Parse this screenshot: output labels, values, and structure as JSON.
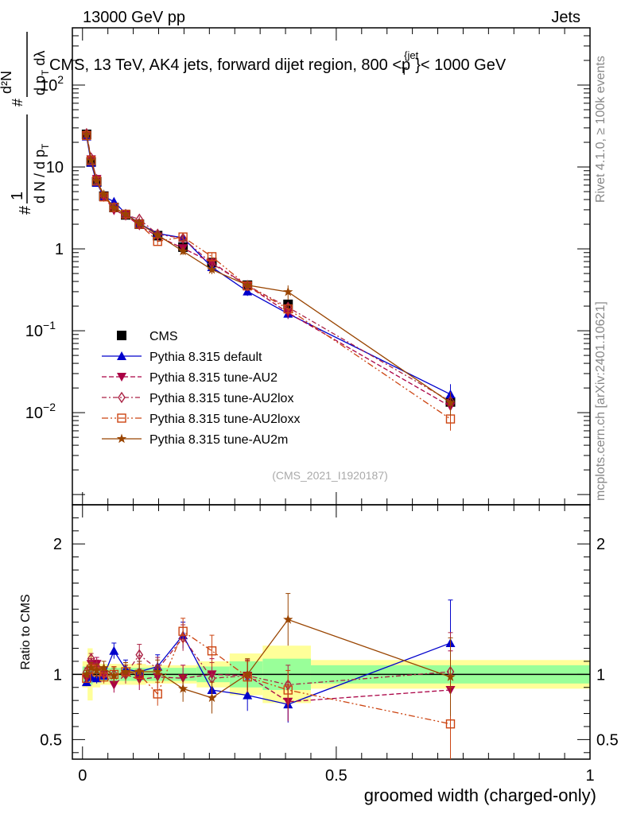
{
  "header": {
    "left": "13000 GeV pp",
    "right": "Jets"
  },
  "side_text": {
    "rivet": "Rivet 4.1.0, ≥ 100k events",
    "mcplots": "mcplots.cern.ch [arXiv:2401.10621]"
  },
  "chart_data": {
    "type": "line",
    "title": "CMS, 13 TeV, AK4 jets, forward dijet region, 800 <p_T^{jet}< 1000 GeV",
    "title_parts": {
      "pre": "CMS, 13 TeV, AK4 jets, forward dijet region, 800 <",
      "p": "p",
      "sub": "T",
      "sup": "{jet",
      "post": "}< 1000 GeV"
    },
    "ylabel_main": "1/(dN/dp_T) d²N/(dp_T dλ)",
    "ylabel_parts": {
      "frac_num": "1",
      "frac_den_pre": "d N / d p",
      "frac_den_sub": "T",
      "num2": "d²N",
      "den2_pre": "d p",
      "den2_sub": "T",
      "den2_post": " dλ",
      "hash": "#"
    },
    "ylabel_ratio": "Ratio to CMS",
    "xlabel": "groomed width (charged-only)",
    "analysis_id": "(CMS_2021_I1920187)",
    "xlim": [
      -0.02,
      1.0
    ],
    "ylim_main": [
      0.00075,
      500
    ],
    "ylim_ratio": [
      0.35,
      2.3
    ],
    "main_y_ticks": [
      {
        "value": 0.01,
        "label": "10",
        "exp": "−2"
      },
      {
        "value": 0.1,
        "label": "10",
        "exp": "−1"
      },
      {
        "value": 1,
        "label": "1",
        "exp": ""
      },
      {
        "value": 10,
        "label": "10",
        "exp": ""
      },
      {
        "value": 100,
        "label": "10",
        "exp": "2"
      }
    ],
    "ratio_y_ticks": [
      {
        "value": 0.5,
        "label": "0.5"
      },
      {
        "value": 1,
        "label": "1"
      },
      {
        "value": 2,
        "label": "2"
      }
    ],
    "x_ticks": [
      {
        "value": 0,
        "label": "0"
      },
      {
        "value": 0.5,
        "label": "0.5"
      },
      {
        "value": 1,
        "label": "1"
      }
    ],
    "x": [
      0.008,
      0.017,
      0.028,
      0.042,
      0.062,
      0.085,
      0.112,
      0.148,
      0.198,
      0.255,
      0.325,
      0.405,
      0.725
    ],
    "bin_edges": [
      0.0,
      0.01,
      0.02,
      0.035,
      0.05,
      0.07,
      0.095,
      0.125,
      0.165,
      0.225,
      0.29,
      0.355,
      0.45,
      1.0
    ],
    "cms_values": [
      25.0,
      11.5,
      6.6,
      4.4,
      3.2,
      2.6,
      2.0,
      1.45,
      1.05,
      0.68,
      0.36,
      0.21,
      0.0135
    ],
    "cms_ratio_band_inner": [
      0.06,
      0.08,
      0.06,
      0.05,
      0.05,
      0.05,
      0.05,
      0.05,
      0.05,
      0.06,
      0.1,
      0.12,
      0.07
    ],
    "cms_ratio_band_outer": [
      0.1,
      0.2,
      0.1,
      0.08,
      0.08,
      0.08,
      0.08,
      0.07,
      0.07,
      0.1,
      0.16,
      0.22,
      0.11
    ],
    "series": [
      {
        "name": "CMS",
        "marker": "square",
        "color": "#000000"
      },
      {
        "name": "Pythia 8.315 default",
        "marker": "triangle-up",
        "color": "#0000cc",
        "line": "solid",
        "ratio": [
          0.94,
          0.98,
          0.97,
          0.99,
          1.18,
          1.04,
          1.02,
          1.06,
          1.3,
          0.88,
          0.84,
          0.77,
          1.24
        ],
        "ratio_err": [
          0.03,
          0.04,
          0.04,
          0.05,
          0.06,
          0.07,
          0.08,
          0.09,
          0.1,
          0.12,
          0.12,
          0.14,
          0.33
        ]
      },
      {
        "name": "Pythia 8.315 tune-AU2",
        "marker": "triangle-down",
        "color": "#aa0044",
        "line": "dashed",
        "ratio": [
          0.97,
          1.08,
          1.08,
          1.0,
          0.92,
          1.0,
          0.96,
          0.98,
          0.97,
          1.0,
          0.99,
          0.79,
          0.88
        ],
        "ratio_err": [
          0.03,
          0.04,
          0.05,
          0.05,
          0.06,
          0.07,
          0.08,
          0.09,
          0.1,
          0.12,
          0.12,
          0.15,
          0.3
        ]
      },
      {
        "name": "Pythia 8.315 tune-AU2lox",
        "marker": "diamond-open",
        "color": "#aa2244",
        "line": "dashdot",
        "ratio": [
          1.02,
          1.12,
          1.06,
          1.0,
          1.0,
          1.0,
          1.15,
          1.04,
          1.28,
          0.97,
          0.99,
          0.92,
          1.02
        ],
        "ratio_err": [
          0.03,
          0.04,
          0.05,
          0.05,
          0.06,
          0.07,
          0.08,
          0.09,
          0.1,
          0.12,
          0.12,
          0.15,
          0.3
        ]
      },
      {
        "name": "Pythia 8.315 tune-AU2loxx",
        "marker": "square-open",
        "color": "#cc4411",
        "line": "dashdotdot",
        "ratio": [
          0.97,
          1.04,
          1.02,
          0.98,
          1.0,
          1.02,
          1.0,
          0.85,
          1.33,
          1.18,
          0.98,
          0.88,
          0.62
        ],
        "ratio_err": [
          0.03,
          0.04,
          0.05,
          0.05,
          0.06,
          0.07,
          0.08,
          0.09,
          0.1,
          0.12,
          0.12,
          0.15,
          0.28
        ]
      },
      {
        "name": "Pythia 8.315 tune-AU2m",
        "marker": "star",
        "color": "#994400",
        "line": "solid",
        "ratio": [
          1.0,
          1.05,
          1.03,
          1.05,
          0.99,
          1.02,
          1.02,
          1.02,
          0.89,
          0.82,
          1.0,
          1.42,
          0.98
        ],
        "ratio_err": [
          0.03,
          0.04,
          0.05,
          0.05,
          0.06,
          0.07,
          0.08,
          0.09,
          0.1,
          0.12,
          0.12,
          0.2,
          0.3
        ]
      }
    ]
  }
}
